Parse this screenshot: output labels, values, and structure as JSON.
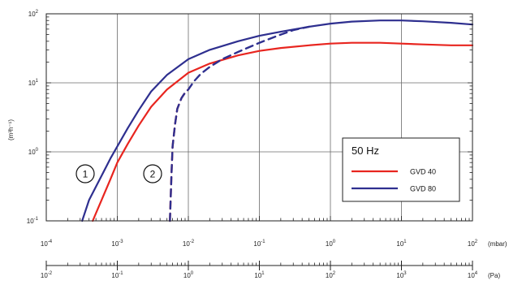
{
  "chart_data": {
    "type": "line",
    "x_scale": "log",
    "y_scale": "log",
    "xlim_mbar": [
      0.0001,
      100
    ],
    "ylim": [
      0.1,
      100
    ],
    "ylabel": "(m³h⁻¹)",
    "x_unit_mbar": "(mbar)",
    "x_unit_pa": "(Pa)",
    "x_ticks_mbar": [
      {
        "value": 0.0001,
        "base": "10",
        "exp": "-4"
      },
      {
        "value": 0.001,
        "base": "10",
        "exp": "-3"
      },
      {
        "value": 0.01,
        "base": "10",
        "exp": "-2"
      },
      {
        "value": 0.1,
        "base": "10",
        "exp": "-1"
      },
      {
        "value": 1,
        "base": "10",
        "exp": "0"
      },
      {
        "value": 10,
        "base": "10",
        "exp": "1"
      },
      {
        "value": 100,
        "base": "10",
        "exp": "2"
      }
    ],
    "x_ticks_pa": [
      {
        "value": 0.01,
        "base": "10",
        "exp": "-2"
      },
      {
        "value": 0.1,
        "base": "10",
        "exp": "-1"
      },
      {
        "value": 1,
        "base": "10",
        "exp": "0"
      },
      {
        "value": 10,
        "base": "10",
        "exp": "1"
      },
      {
        "value": 100,
        "base": "10",
        "exp": "2"
      },
      {
        "value": 1000,
        "base": "10",
        "exp": "3"
      },
      {
        "value": 10000,
        "base": "10",
        "exp": "4"
      }
    ],
    "y_ticks": [
      {
        "value": 0.1,
        "base": "10",
        "exp": "-1"
      },
      {
        "value": 1,
        "base": "10",
        "exp": "0"
      },
      {
        "value": 10,
        "base": "10",
        "exp": "1"
      },
      {
        "value": 100,
        "base": "10",
        "exp": "2"
      }
    ],
    "grid": true,
    "legend": {
      "title": "50 Hz",
      "position": "bottom-right"
    },
    "callouts": [
      "1",
      "2"
    ],
    "series": [
      {
        "name": "GVD 40",
        "color": "#e8251f",
        "dash": false,
        "x": [
          0.00045,
          0.0006,
          0.0008,
          0.001,
          0.0014,
          0.002,
          0.003,
          0.005,
          0.01,
          0.02,
          0.05,
          0.1,
          0.2,
          0.5,
          1,
          2,
          5,
          10,
          20,
          50,
          100
        ],
        "y": [
          0.1,
          0.2,
          0.4,
          0.7,
          1.3,
          2.4,
          4.5,
          8,
          14,
          19,
          25,
          29,
          32,
          35,
          37,
          38,
          38,
          37,
          36,
          35,
          35
        ]
      },
      {
        "name": "GVD 80",
        "color": "#2e2f8f",
        "dash": false,
        "x": [
          0.00032,
          0.0004,
          0.0006,
          0.0008,
          0.001,
          0.0014,
          0.002,
          0.003,
          0.005,
          0.01,
          0.02,
          0.05,
          0.1,
          0.2,
          0.5,
          1,
          2,
          5,
          10,
          20,
          50,
          100
        ],
        "y": [
          0.1,
          0.2,
          0.45,
          0.8,
          1.2,
          2.2,
          4,
          7.5,
          13,
          22,
          30,
          40,
          48,
          55,
          65,
          72,
          77,
          80,
          80,
          78,
          74,
          70
        ]
      },
      {
        "name": "",
        "color": "#e8251f",
        "dash": true,
        "x": [
          0.0055,
          0.0058,
          0.006,
          0.0065,
          0.007,
          0.008,
          0.009,
          0.01
        ],
        "y": [
          0.1,
          0.5,
          1.2,
          2.5,
          4.2,
          6,
          7.2,
          8
        ]
      },
      {
        "name": "",
        "color": "#2e2f8f",
        "dash": true,
        "x": [
          0.0055,
          0.0058,
          0.006,
          0.0065,
          0.007,
          0.008,
          0.009,
          0.01,
          0.012,
          0.015,
          0.02,
          0.03,
          0.05,
          0.1,
          0.2,
          0.3,
          0.5
        ],
        "y": [
          0.1,
          0.5,
          1.2,
          2.5,
          4.2,
          6,
          7.2,
          8,
          10.5,
          13.5,
          17,
          22,
          28,
          38,
          50,
          58,
          65
        ]
      }
    ]
  }
}
